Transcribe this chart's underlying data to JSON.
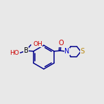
{
  "bg_color": "#e8e8e8",
  "line_color": "#00008B",
  "atom_colors": {
    "B": "#000000",
    "O": "#cc0000",
    "N": "#0000cc",
    "S": "#b8860b",
    "C": "#00008B"
  },
  "line_width": 1.1,
  "font_size": 6.5,
  "figsize": [
    1.52,
    1.52
  ],
  "dpi": 100,
  "xlim": [
    0.0,
    10.0
  ],
  "ylim": [
    2.5,
    8.5
  ]
}
